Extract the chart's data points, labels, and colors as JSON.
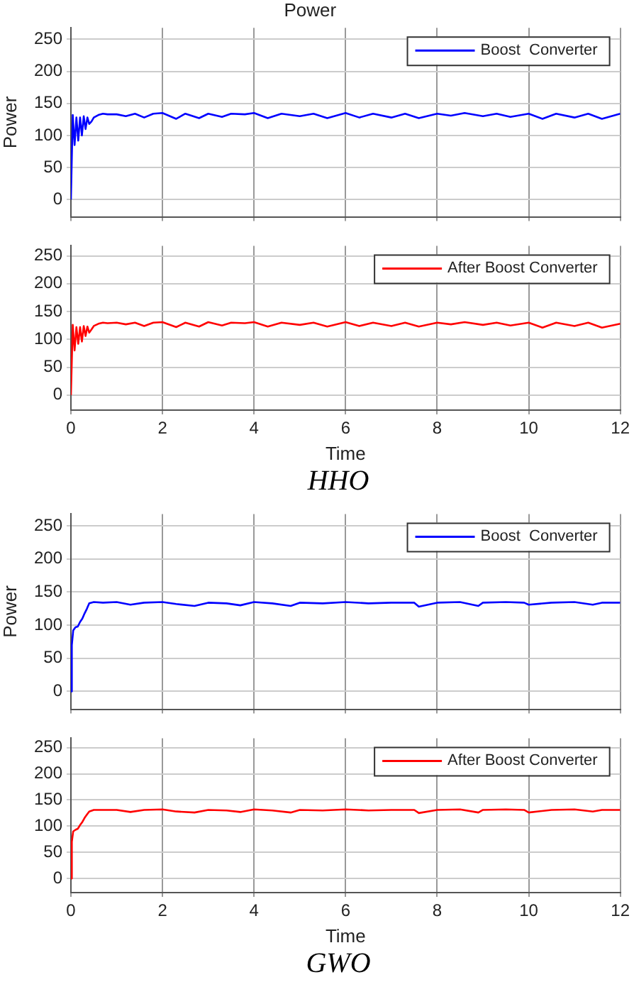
{
  "chart_data": [
    {
      "type": "line",
      "title": "Power",
      "ylabel": "Power",
      "xlim": [
        0,
        12
      ],
      "ylim": [
        -27,
        268
      ],
      "xticks": [
        0,
        2,
        4,
        6,
        8,
        10,
        12
      ],
      "yticks": [
        0,
        50,
        100,
        150,
        200,
        250
      ],
      "grid": true,
      "legend": "top right",
      "tick_labels": "y",
      "series": [
        {
          "name": "Boost  Converter",
          "color": "#0000ff",
          "x": [
            0,
            0.04,
            0.08,
            0.12,
            0.16,
            0.2,
            0.24,
            0.28,
            0.32,
            0.36,
            0.4,
            0.45,
            0.5,
            0.6,
            0.7,
            0.8,
            1.0,
            1.2,
            1.4,
            1.6,
            1.8,
            2.0,
            2.3,
            2.5,
            2.8,
            3.0,
            3.3,
            3.5,
            3.8,
            4.0,
            4.3,
            4.6,
            5.0,
            5.3,
            5.6,
            6.0,
            6.3,
            6.6,
            7.0,
            7.3,
            7.6,
            8.0,
            8.3,
            8.6,
            9.0,
            9.3,
            9.6,
            10.0,
            10.3,
            10.6,
            11.0,
            11.3,
            11.6,
            12.0
          ],
          "values": [
            0,
            132,
            85,
            128,
            92,
            128,
            100,
            130,
            110,
            128,
            118,
            122,
            128,
            132,
            134,
            133,
            133,
            130,
            134,
            128,
            134,
            135,
            126,
            134,
            127,
            134,
            129,
            134,
            133,
            135,
            127,
            134,
            130,
            134,
            127,
            135,
            128,
            134,
            128,
            134,
            127,
            134,
            131,
            135,
            130,
            134,
            129,
            134,
            126,
            134,
            128,
            134,
            126,
            134
          ]
        }
      ]
    },
    {
      "type": "line",
      "xlabel": "Time",
      "xlim": [
        0,
        12
      ],
      "ylim": [
        -27,
        268
      ],
      "xticks": [
        0,
        2,
        4,
        6,
        8,
        10,
        12
      ],
      "yticks": [
        0,
        50,
        100,
        150,
        200,
        250
      ],
      "grid": true,
      "legend": "top right",
      "annotations": [
        "HHO"
      ],
      "series": [
        {
          "name": "After Boost Converter",
          "color": "#ff0000",
          "x": [
            0,
            0.04,
            0.08,
            0.12,
            0.16,
            0.2,
            0.24,
            0.28,
            0.32,
            0.36,
            0.4,
            0.45,
            0.5,
            0.6,
            0.7,
            0.8,
            1.0,
            1.2,
            1.4,
            1.6,
            1.8,
            2.0,
            2.3,
            2.5,
            2.8,
            3.0,
            3.3,
            3.5,
            3.8,
            4.0,
            4.3,
            4.6,
            5.0,
            5.3,
            5.6,
            6.0,
            6.3,
            6.6,
            7.0,
            7.3,
            7.6,
            8.0,
            8.3,
            8.6,
            9.0,
            9.3,
            9.6,
            10.0,
            10.3,
            10.6,
            11.0,
            11.3,
            11.6,
            12.0
          ],
          "values": [
            0,
            126,
            80,
            122,
            92,
            122,
            96,
            124,
            106,
            123,
            112,
            118,
            124,
            128,
            130,
            129,
            130,
            127,
            130,
            124,
            130,
            131,
            122,
            130,
            123,
            131,
            125,
            130,
            129,
            131,
            123,
            130,
            126,
            130,
            123,
            131,
            124,
            130,
            124,
            130,
            123,
            130,
            127,
            131,
            126,
            130,
            125,
            130,
            121,
            130,
            124,
            130,
            121,
            128
          ]
        }
      ]
    },
    {
      "type": "line",
      "ylabel": "Power",
      "xlim": [
        0,
        12
      ],
      "ylim": [
        -27,
        268
      ],
      "xticks": [
        0,
        2,
        4,
        6,
        8,
        10,
        12
      ],
      "yticks": [
        0,
        50,
        100,
        150,
        200,
        250
      ],
      "grid": true,
      "legend": "top right",
      "tick_labels": "y",
      "series": [
        {
          "name": "Boost  Converter",
          "color": "#0000ff",
          "x": [
            0,
            0.02,
            0.05,
            0.1,
            0.15,
            0.2,
            0.25,
            0.3,
            0.35,
            0.4,
            0.5,
            0.7,
            1.0,
            1.3,
            1.6,
            2.0,
            2.3,
            2.7,
            3.0,
            3.4,
            3.7,
            4.0,
            4.4,
            4.8,
            5.0,
            5.5,
            6.0,
            6.5,
            7.0,
            7.5,
            7.6,
            8.0,
            8.5,
            8.9,
            9.0,
            9.5,
            9.9,
            10.0,
            10.5,
            11.0,
            11.4,
            11.6,
            12.0
          ],
          "values": [
            0,
            70,
            92,
            97,
            98,
            105,
            110,
            118,
            125,
            133,
            135,
            134,
            135,
            131,
            134,
            135,
            132,
            129,
            134,
            133,
            130,
            135,
            133,
            129,
            134,
            133,
            135,
            133,
            134,
            134,
            128,
            134,
            135,
            129,
            134,
            135,
            134,
            131,
            134,
            135,
            131,
            134,
            134
          ]
        }
      ]
    },
    {
      "type": "line",
      "xlabel": "Time",
      "xlim": [
        0,
        12
      ],
      "ylim": [
        -27,
        268
      ],
      "xticks": [
        0,
        2,
        4,
        6,
        8,
        10,
        12
      ],
      "yticks": [
        0,
        50,
        100,
        150,
        200,
        250
      ],
      "grid": true,
      "legend": "top right",
      "annotations": [
        "GWO"
      ],
      "series": [
        {
          "name": "After Boost Converter",
          "color": "#ff0000",
          "x": [
            0,
            0.02,
            0.05,
            0.1,
            0.15,
            0.2,
            0.25,
            0.3,
            0.35,
            0.4,
            0.5,
            0.7,
            1.0,
            1.3,
            1.6,
            2.0,
            2.3,
            2.7,
            3.0,
            3.4,
            3.7,
            4.0,
            4.4,
            4.8,
            5.0,
            5.5,
            6.0,
            6.5,
            7.0,
            7.5,
            7.6,
            8.0,
            8.5,
            8.9,
            9.0,
            9.5,
            9.9,
            10.0,
            10.5,
            11.0,
            11.4,
            11.6,
            12.0
          ],
          "values": [
            0,
            70,
            90,
            93,
            95,
            102,
            108,
            116,
            122,
            128,
            131,
            131,
            131,
            127,
            131,
            132,
            128,
            126,
            131,
            130,
            127,
            132,
            130,
            126,
            131,
            130,
            132,
            130,
            131,
            131,
            125,
            131,
            132,
            126,
            131,
            132,
            131,
            126,
            131,
            132,
            128,
            131,
            131
          ]
        }
      ]
    }
  ]
}
